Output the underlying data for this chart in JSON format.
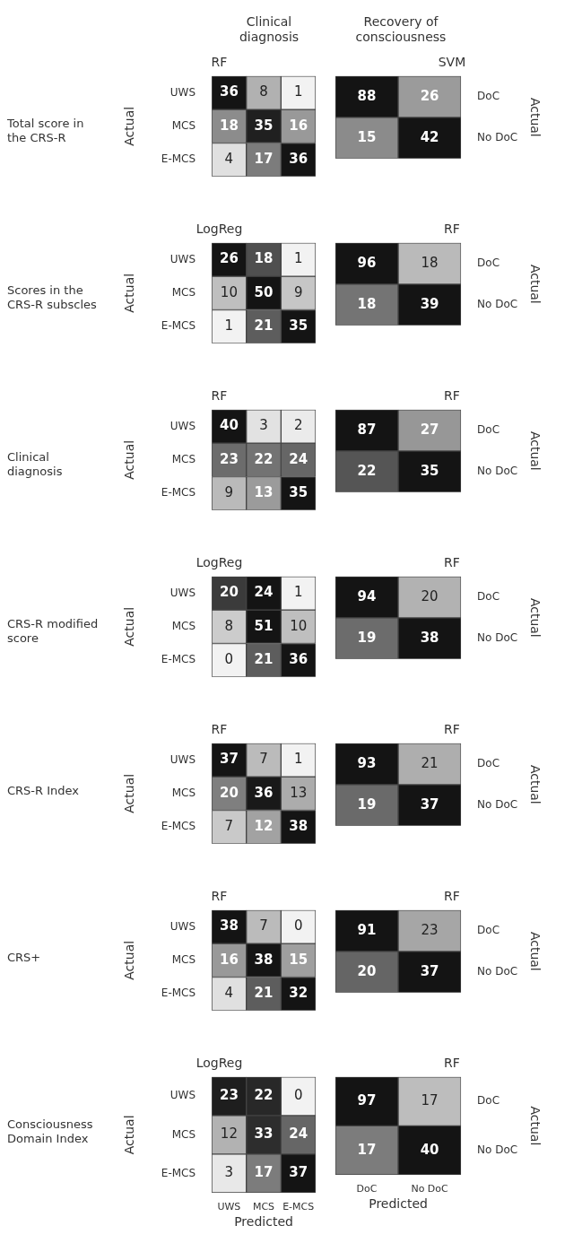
{
  "chart_data": [
    {
      "type": "heatmap",
      "subtitle": "Clinical diagnosis",
      "title": "RF",
      "annotations": [
        "Total score in the CRS-R"
      ],
      "ylabel": "Actual",
      "categories": [
        null,
        null,
        null
      ],
      "y_categories": [
        "UWS",
        "MCS",
        "E-MCS"
      ],
      "cells": [
        [
          36,
          8,
          1
        ],
        [
          18,
          35,
          16
        ],
        [
          4,
          17,
          36
        ]
      ],
      "data_labels": true
    },
    {
      "type": "heatmap",
      "subtitle": "Recovery of consciousness",
      "title": "SVM",
      "ylabel": "Actual",
      "categories": [
        null,
        null
      ],
      "y_categories": [
        "DoC",
        "No DoC"
      ],
      "cells": [
        [
          88,
          26
        ],
        [
          15,
          42
        ]
      ],
      "data_labels": true
    },
    {
      "type": "heatmap",
      "title": "LogReg",
      "annotations": [
        "Scores in the CRS-R subscles"
      ],
      "ylabel": "Actual",
      "categories": [
        null,
        null,
        null
      ],
      "y_categories": [
        "UWS",
        "MCS",
        "E-MCS"
      ],
      "cells": [
        [
          26,
          18,
          1
        ],
        [
          10,
          50,
          9
        ],
        [
          1,
          21,
          35
        ]
      ],
      "data_labels": true
    },
    {
      "type": "heatmap",
      "title": "RF",
      "ylabel": "Actual",
      "categories": [
        null,
        null
      ],
      "y_categories": [
        "DoC",
        "No DoC"
      ],
      "cells": [
        [
          96,
          18
        ],
        [
          18,
          39
        ]
      ],
      "data_labels": true
    },
    {
      "type": "heatmap",
      "title": "RF",
      "annotations": [
        "Clinical diagnosis"
      ],
      "ylabel": "Actual",
      "categories": [
        null,
        null,
        null
      ],
      "y_categories": [
        "UWS",
        "MCS",
        "E-MCS"
      ],
      "cells": [
        [
          40,
          3,
          2
        ],
        [
          23,
          22,
          24
        ],
        [
          9,
          13,
          35
        ]
      ],
      "data_labels": true
    },
    {
      "type": "heatmap",
      "title": "RF",
      "ylabel": "Actual",
      "categories": [
        null,
        null
      ],
      "y_categories": [
        "DoC",
        "No DoC"
      ],
      "cells": [
        [
          87,
          27
        ],
        [
          22,
          35
        ]
      ],
      "data_labels": true
    },
    {
      "type": "heatmap",
      "title": "LogReg",
      "annotations": [
        "CRS-R modified score"
      ],
      "ylabel": "Actual",
      "categories": [
        null,
        null,
        null
      ],
      "y_categories": [
        "UWS",
        "MCS",
        "E-MCS"
      ],
      "cells": [
        [
          20,
          24,
          1
        ],
        [
          8,
          51,
          10
        ],
        [
          0,
          21,
          36
        ]
      ],
      "data_labels": true
    },
    {
      "type": "heatmap",
      "title": "RF",
      "ylabel": "Actual",
      "categories": [
        null,
        null
      ],
      "y_categories": [
        "DoC",
        "No DoC"
      ],
      "cells": [
        [
          94,
          20
        ],
        [
          19,
          38
        ]
      ],
      "data_labels": true
    },
    {
      "type": "heatmap",
      "title": "RF",
      "annotations": [
        "CRS-R Index"
      ],
      "ylabel": "Actual",
      "categories": [
        null,
        null,
        null
      ],
      "y_categories": [
        "UWS",
        "MCS",
        "E-MCS"
      ],
      "cells": [
        [
          37,
          7,
          1
        ],
        [
          20,
          36,
          13
        ],
        [
          7,
          12,
          38
        ]
      ],
      "data_labels": true
    },
    {
      "type": "heatmap",
      "title": "RF",
      "ylabel": "Actual",
      "categories": [
        null,
        null
      ],
      "y_categories": [
        "DoC",
        "No DoC"
      ],
      "cells": [
        [
          93,
          21
        ],
        [
          19,
          37
        ]
      ],
      "data_labels": true
    },
    {
      "type": "heatmap",
      "title": "RF",
      "annotations": [
        "CRS+"
      ],
      "ylabel": "Actual",
      "categories": [
        null,
        null,
        null
      ],
      "y_categories": [
        "UWS",
        "MCS",
        "E-MCS"
      ],
      "cells": [
        [
          38,
          7,
          0
        ],
        [
          16,
          38,
          15
        ],
        [
          4,
          21,
          32
        ]
      ],
      "data_labels": true
    },
    {
      "type": "heatmap",
      "title": "RF",
      "ylabel": "Actual",
      "categories": [
        null,
        null
      ],
      "y_categories": [
        "DoC",
        "No DoC"
      ],
      "cells": [
        [
          91,
          23
        ],
        [
          20,
          37
        ]
      ],
      "data_labels": true
    },
    {
      "type": "heatmap",
      "title": "LogReg",
      "annotations": [
        "Consciousness Domain Index"
      ],
      "ylabel": "Actual",
      "xlabel": "Predicted",
      "categories": [
        "UWS",
        "MCS",
        "E-MCS"
      ],
      "y_categories": [
        "UWS",
        "MCS",
        "E-MCS"
      ],
      "cells": [
        [
          23,
          22,
          0
        ],
        [
          12,
          33,
          24
        ],
        [
          3,
          17,
          37
        ]
      ],
      "data_labels": true
    },
    {
      "type": "heatmap",
      "title": "RF",
      "ylabel": "Actual",
      "xlabel": "Predicted",
      "categories": [
        "DoC",
        "No DoC"
      ],
      "y_categories": [
        "DoC",
        "No DoC"
      ],
      "cells": [
        [
          97,
          17
        ],
        [
          17,
          40
        ]
      ],
      "data_labels": true
    }
  ]
}
